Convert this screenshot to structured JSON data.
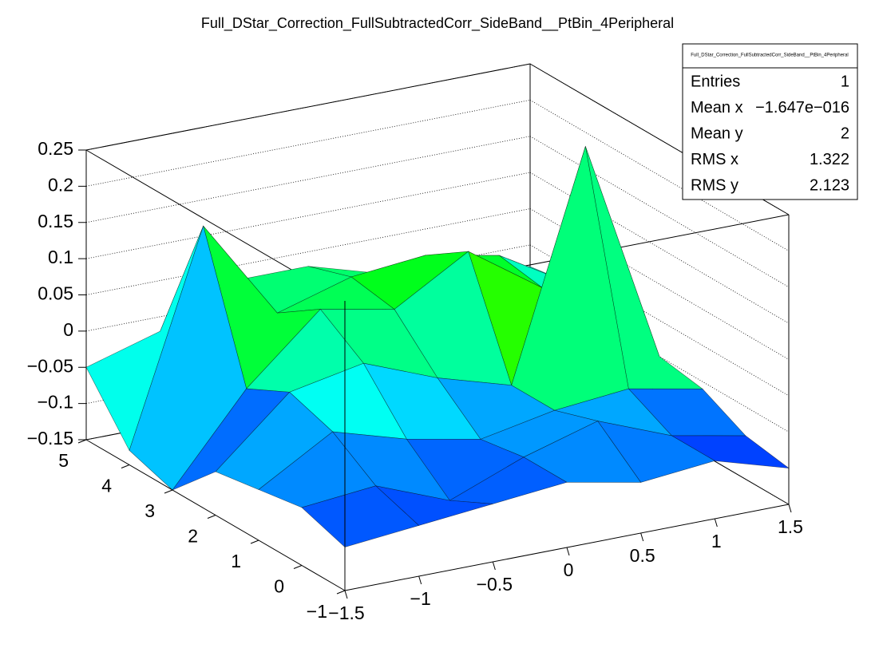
{
  "chart_data": {
    "type": "surface",
    "title": "Full_DStar_Correction_FullSubtractedCorr_SideBand__PtBin_4Peripheral",
    "x": [
      -1.5,
      -1,
      -0.5,
      0,
      0.5,
      1,
      1.5
    ],
    "y": [
      -1,
      0,
      1,
      2,
      3,
      4,
      5
    ],
    "z": [
      [
        -0.09,
        -0.08,
        -0.07,
        -0.06,
        -0.08,
        -0.07,
        -0.1
      ],
      [
        -0.07,
        -0.06,
        -0.1,
        -0.06,
        -0.03,
        -0.07,
        -0.09
      ],
      [
        -0.08,
        -0.02,
        -0.05,
        -0.07,
        -0.05,
        -0.04,
        -0.06
      ],
      [
        -0.09,
        0.0,
        0.02,
        -0.02,
        -0.05,
        0.26,
        -0.05
      ],
      [
        -0.15,
        -0.03,
        0.06,
        0.04,
        0.1,
        0.03,
        -0.03
      ],
      [
        -0.13,
        0.16,
        0.02,
        0.05,
        0.06,
        0.04,
        -0.02
      ],
      [
        -0.05,
        -0.02,
        0.03,
        0.03,
        0.0,
        0.0,
        -0.03
      ]
    ],
    "xlim": [
      -1.5,
      1.5
    ],
    "ylim": [
      -1,
      5
    ],
    "zlim": [
      -0.15,
      0.25
    ],
    "xticks": [
      {
        "value": -1.5,
        "label": "−1.5"
      },
      {
        "value": -1,
        "label": "−1"
      },
      {
        "value": -0.5,
        "label": "−0.5"
      },
      0,
      0.5,
      1,
      1.5
    ],
    "yticks": [
      {
        "value": -1,
        "label": "−1"
      },
      0,
      1,
      2,
      3,
      4,
      5
    ],
    "zticks": [
      {
        "value": -0.15,
        "label": "−0.15"
      },
      {
        "value": -0.1,
        "label": "−0.1"
      },
      {
        "value": -0.05,
        "label": "−0.05"
      },
      0,
      0.05,
      0.1,
      0.15,
      0.2,
      0.25
    ],
    "grid": true,
    "palette": "rainbow"
  },
  "stats": {
    "title": "Full_DStar_Correction_FullSubtractedCorr_SideBand__PtBin_4Peripheral",
    "rows": [
      [
        "Entries",
        "1"
      ],
      [
        "Mean x",
        "−1.647e−016"
      ],
      [
        "Mean y",
        "2"
      ],
      [
        "RMS x",
        "1.322"
      ],
      [
        "RMS y",
        "2.123"
      ]
    ]
  }
}
